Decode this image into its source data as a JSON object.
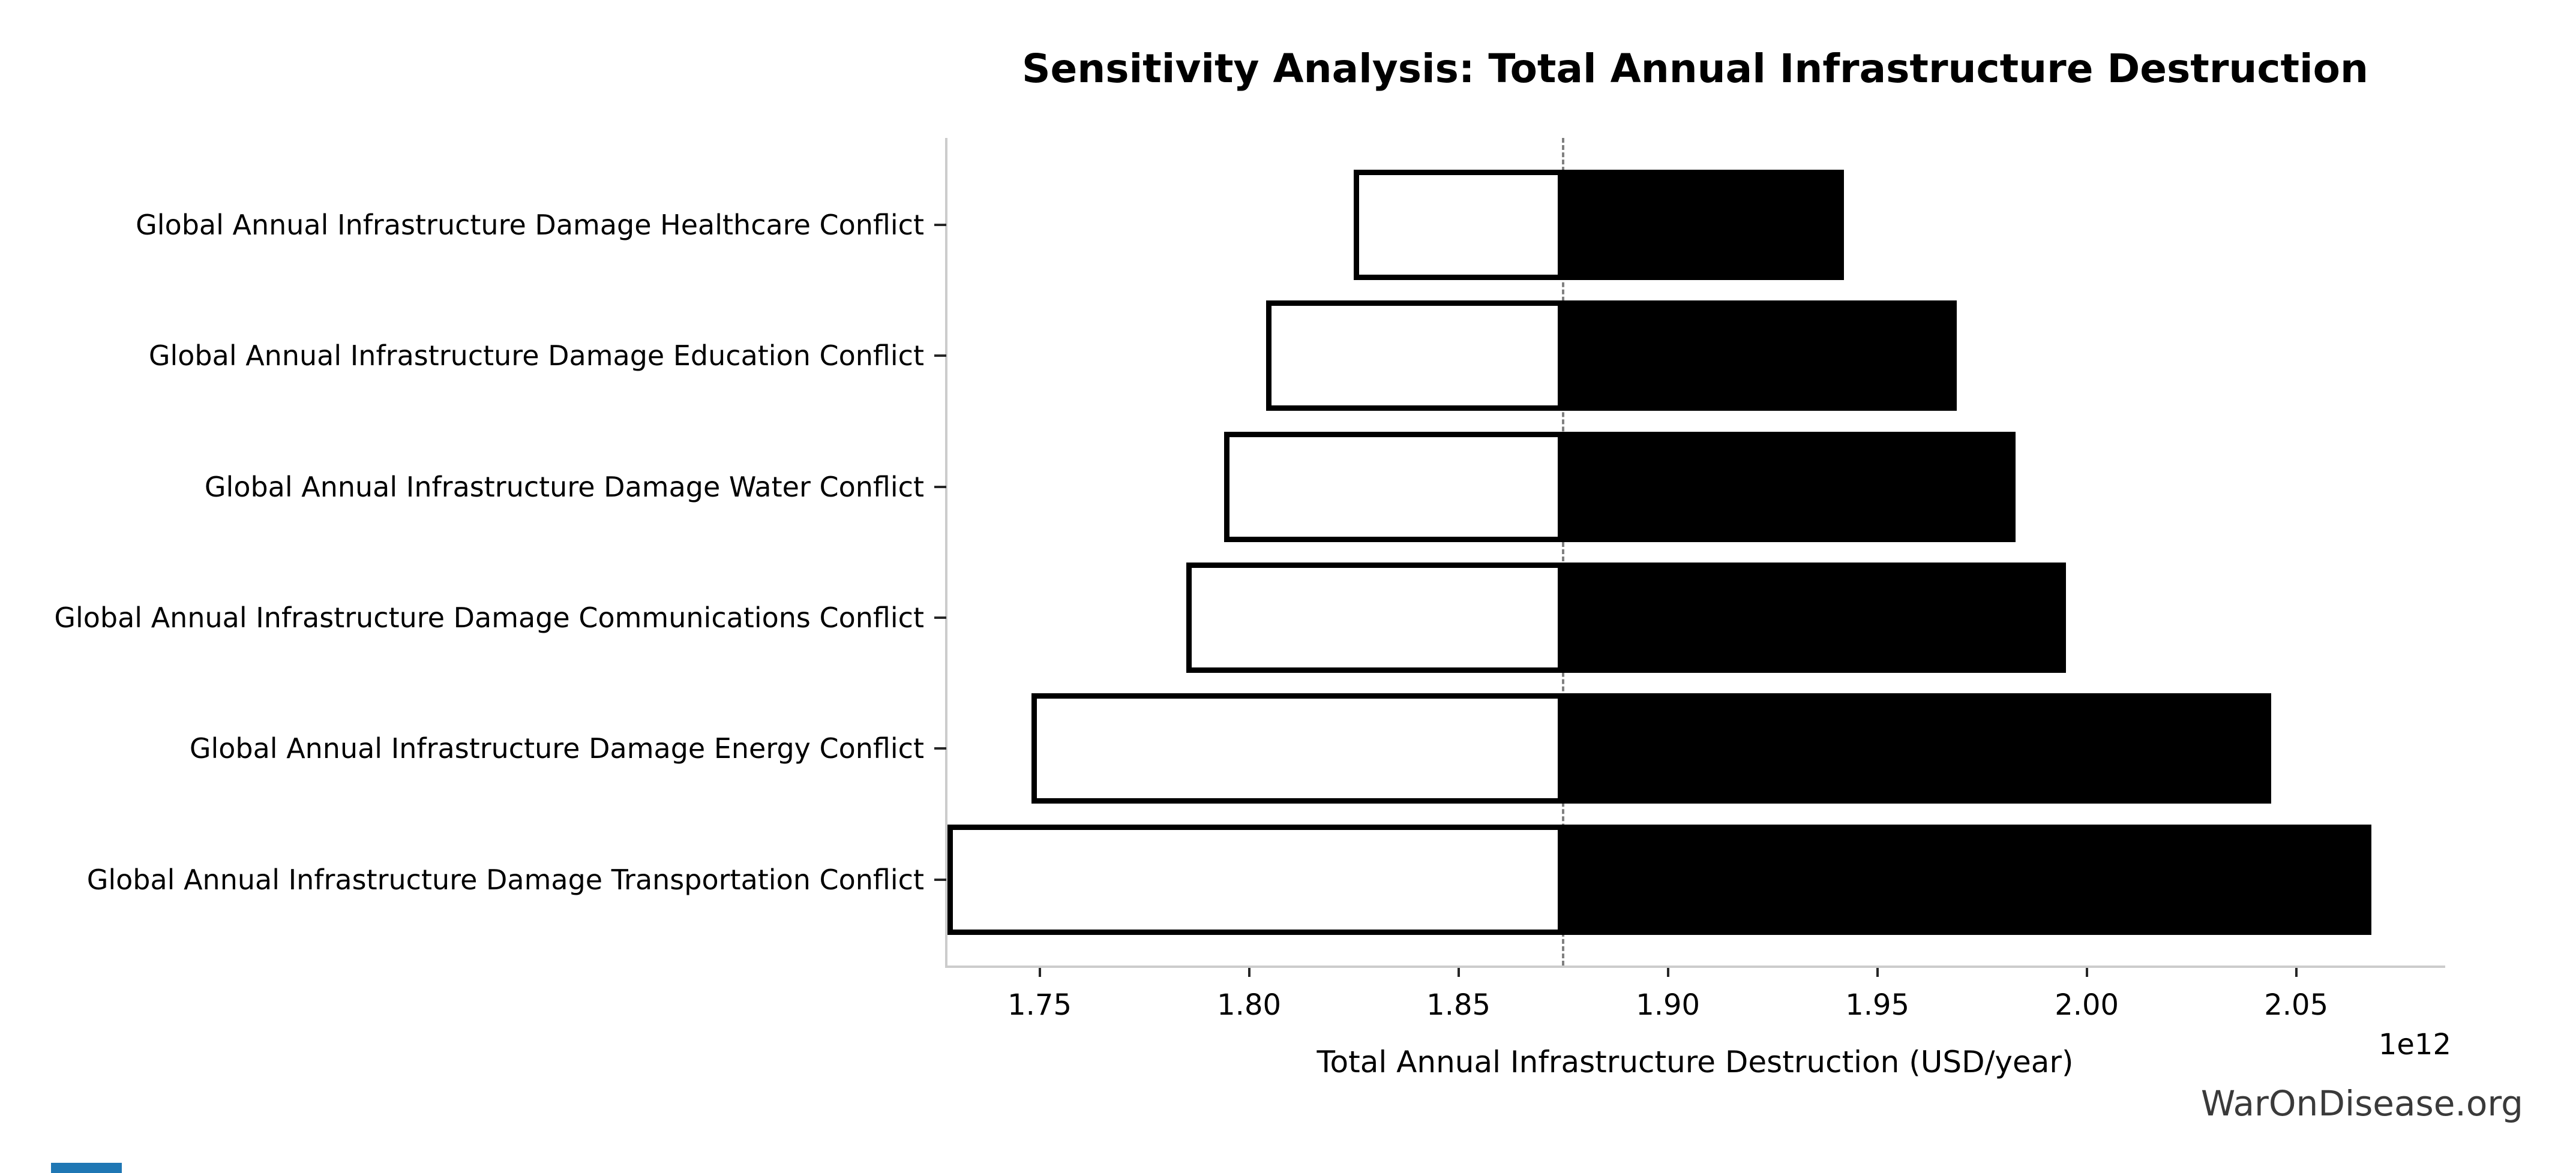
{
  "title": "Sensitivity Analysis: Total Annual Infrastructure Destruction",
  "x_axis_label": "Total Annual Infrastructure Destruction (USD/year)",
  "offset_label": "1e12",
  "watermark": "WarOnDisease.org",
  "colors": {
    "bar_fill_low": "#ffffff",
    "bar_fill_high": "#000000",
    "bar_border": "#000000",
    "baseline_dash": "#808080",
    "spine": "#cccccc",
    "tick": "#262626",
    "text": "#000000",
    "watermark": "#3a3a3a",
    "corner_mark_blue": "#1f77b4"
  },
  "chart_data": {
    "type": "bar",
    "subtype": "tornado-sensitivity",
    "orientation": "horizontal",
    "title": "Sensitivity Analysis: Total Annual Infrastructure Destruction",
    "xlabel": "Total Annual Infrastructure Destruction (USD/year)",
    "x_multiplier": "1e12",
    "x_unit": "USD/year",
    "xlim": [
      1.728,
      2.085
    ],
    "baseline": 1.875,
    "x_ticks": [
      1.75,
      1.8,
      1.85,
      1.9,
      1.95,
      2.0,
      2.05
    ],
    "x_tick_labels": [
      "1.75",
      "1.80",
      "1.85",
      "1.90",
      "1.95",
      "2.00",
      "2.05"
    ],
    "grid": false,
    "legend": false,
    "categories": [
      "Global Annual Infrastructure Damage Healthcare Conflict",
      "Global Annual Infrastructure Damage Education Conflict",
      "Global Annual Infrastructure Damage Water Conflict",
      "Global Annual Infrastructure Damage Communications Conflict",
      "Global Annual Infrastructure Damage Energy Conflict",
      "Global Annual Infrastructure Damage Transportation Conflict"
    ],
    "series": [
      {
        "name": "low_value",
        "values": [
          1.825,
          1.804,
          1.794,
          1.785,
          1.748,
          1.728
        ]
      },
      {
        "name": "high_value",
        "values": [
          1.942,
          1.969,
          1.983,
          1.995,
          2.044,
          2.068
        ]
      }
    ]
  }
}
